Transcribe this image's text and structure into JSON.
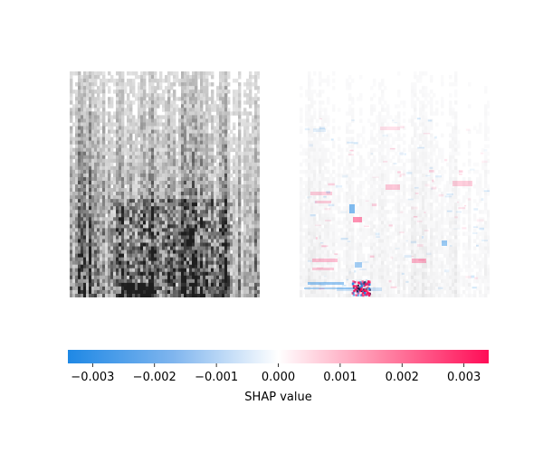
{
  "chart_data": {
    "type": "heatmap",
    "panels": [
      {
        "name": "",
        "role": "input-spectrogram",
        "colormap": "gray"
      },
      {
        "name": "",
        "role": "shap-overlay",
        "colormap": "shap-red-blue"
      }
    ],
    "colorbar": {
      "label": "SHAP value",
      "range": [
        -0.0034,
        0.0034
      ],
      "ticks": [
        -0.003,
        -0.002,
        -0.001,
        0.0,
        0.001,
        0.002,
        0.003
      ],
      "tick_labels": [
        "−0.003",
        "−0.002",
        "−0.001",
        "0.000",
        "0.001",
        "0.002",
        "0.003"
      ],
      "colors": {
        "negative": "#1E88E5",
        "zero": "#ffffff",
        "positive": "#FF0D57"
      }
    },
    "highlights": [
      {
        "panel": 1,
        "sign": "positive",
        "note": "strongest positive/negative cluster near bottom-left-center"
      }
    ]
  }
}
